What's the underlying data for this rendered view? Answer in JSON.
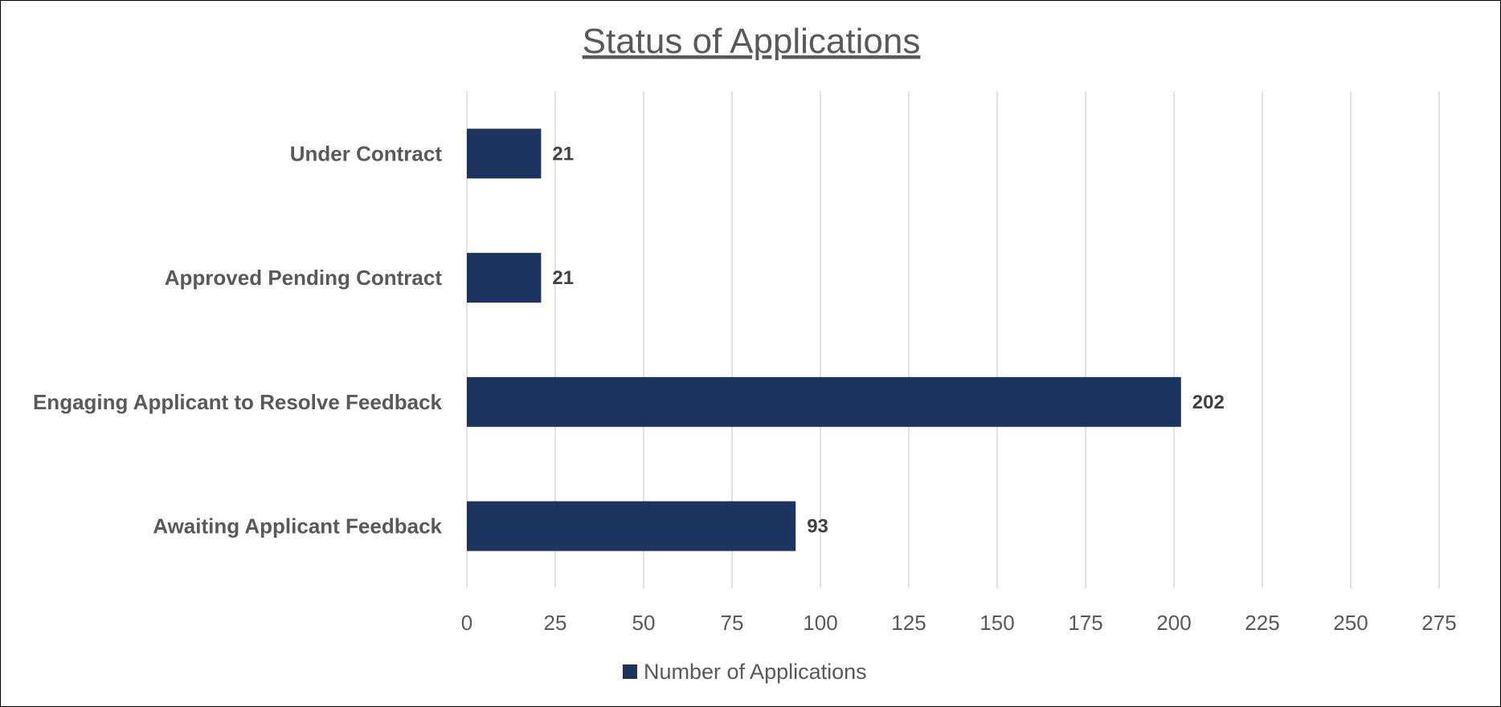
{
  "chart_data": {
    "type": "bar",
    "orientation": "horizontal",
    "title": "Status of Applications",
    "categories": [
      "Under Contract",
      "Approved Pending Contract",
      "Engaging Applicant to Resolve Feedback",
      "Awaiting Applicant Feedback"
    ],
    "series": [
      {
        "name": "Number of Applications",
        "values": [
          21,
          21,
          202,
          93
        ],
        "color": "#1c355e"
      }
    ],
    "xlabel": "",
    "ylabel": "",
    "xlim": [
      0,
      275
    ],
    "xticks": [
      0,
      25,
      50,
      75,
      100,
      125,
      150,
      175,
      200,
      225,
      250,
      275
    ],
    "grid": "vertical",
    "legend": "bottom-center",
    "gridline_color": "#d9d9d9"
  }
}
